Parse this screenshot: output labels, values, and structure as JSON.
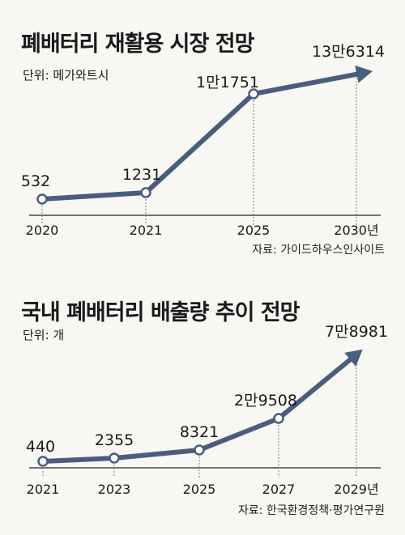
{
  "colors": {
    "line": "#4a5d7d",
    "marker_fill": "#ffffff",
    "axis": "#222222",
    "guide": "#777777"
  },
  "chart_data": [
    {
      "type": "line",
      "title": "폐배터리 재활용 시장 전망",
      "unit": "단위: 메가와트시",
      "source": "자료: 가이드하우스인사이트",
      "categories": [
        "2020",
        "2021",
        "2025",
        "2030년"
      ],
      "values": [
        532,
        1231,
        11751,
        136314
      ],
      "value_labels": [
        "532",
        "1231",
        "1만1751",
        "13만6314"
      ],
      "last_point_arrow": true
    },
    {
      "type": "line",
      "title": "국내 폐배터리 배출량 추이 전망",
      "unit": "단위: 개",
      "source": "자료: 한국환경정책·평가연구원",
      "categories": [
        "2021",
        "2023",
        "2025",
        "2027",
        "2029년"
      ],
      "values": [
        440,
        2355,
        8321,
        29508,
        78981
      ],
      "value_labels": [
        "440",
        "2355",
        "8321",
        "2만9508",
        "7만8981"
      ],
      "last_point_arrow": true
    }
  ]
}
